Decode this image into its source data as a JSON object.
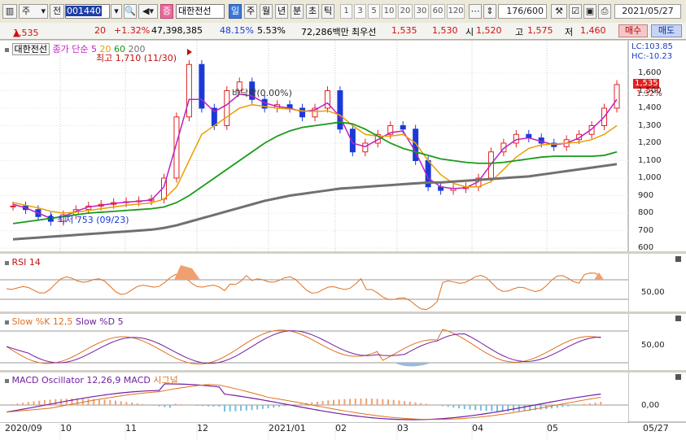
{
  "toolbar": {
    "market": "주",
    "type": "전",
    "code": "001440",
    "stock_name": "대한전선",
    "periods": [
      "일",
      "주",
      "월",
      "년",
      "분",
      "초",
      "틱"
    ],
    "active_period": "일",
    "intervals": [
      "1",
      "3",
      "5",
      "10",
      "20",
      "30",
      "60",
      "120"
    ],
    "count": "176",
    "count_total": "/600",
    "date": "2021/05/27"
  },
  "quote": {
    "price": "1,535",
    "change": "20",
    "change_pct": "+1.32%",
    "volume": "47,398,385",
    "vol_ratio": "48.15%",
    "turnover": "5.53%",
    "amount": "72,286백만",
    "label_bid": "최우선",
    "bid1": "1,535",
    "bid2": "1,530",
    "label_open": "시",
    "open": "1,520",
    "label_high": "고",
    "high": "1,575",
    "label_low": "저",
    "low": "1,460",
    "buy": "매수",
    "sell": "매도"
  },
  "price_panel": {
    "stock_label": "대한전선",
    "ma_label": "종가 단순",
    "ma_periods": [
      "5",
      "20",
      "60",
      "200"
    ],
    "ma_colors": [
      "#c020c0",
      "#e8a000",
      "#1a9a1a",
      "#707070"
    ],
    "lc": "LC:103.85",
    "hc": "HC:-10.23",
    "high_note": "최고 1,710 (11/30)",
    "low_note": "최저 753 (09/23)",
    "mid_note": "바닥락(0.00%)",
    "current_price": "1,535",
    "current_pct": "1.32%",
    "y_ticks": [
      "1,600",
      "1,500",
      "1,400",
      "1,300",
      "1,200",
      "1,100",
      "1,000",
      "900",
      "800",
      "700",
      "600"
    ]
  },
  "rsi_panel": {
    "title": "RSI 14",
    "level": "50,00"
  },
  "stoch_panel": {
    "title_k": "Slow %K 12,5",
    "title_d": "Slow %D 5",
    "level": "50,00"
  },
  "macd_panel": {
    "title_osc": "MACD Oscillator 12,26,9",
    "title_macd": "MACD",
    "title_sig": "시그널",
    "level": "0,00"
  },
  "x_axis": {
    "labels": [
      "2020/09",
      "10",
      "11",
      "12",
      "2021/01",
      "02",
      "03",
      "04",
      "05"
    ],
    "end_date": "05/27"
  },
  "colors": {
    "up": "#e02020",
    "down": "#1a3ad8",
    "rsi": "#e07020",
    "k": "#e07020",
    "d": "#7020a0",
    "macd": "#7020a0",
    "signal": "#e07020"
  },
  "chart_data": {
    "type": "line",
    "series": [
      {
        "name": "종가",
        "values": [
          840,
          820,
          780,
          753,
          790,
          820,
          840,
          850,
          860,
          865,
          870,
          880,
          1000,
          1350,
          1650,
          1400,
          1300,
          1500,
          1550,
          1450,
          1400,
          1420,
          1400,
          1350,
          1400,
          1500,
          1280,
          1150,
          1200,
          1250,
          1300,
          1280,
          1100,
          950,
          930,
          940,
          950,
          1000,
          1150,
          1200,
          1250,
          1230,
          1200,
          1180,
          1220,
          1250,
          1300,
          1400,
          1535
        ]
      },
      {
        "name": "5",
        "values": [
          850,
          830,
          800,
          770,
          780,
          810,
          835,
          845,
          855,
          862,
          868,
          875,
          950,
          1200,
          1450,
          1450,
          1380,
          1420,
          1480,
          1470,
          1430,
          1410,
          1400,
          1380,
          1390,
          1430,
          1350,
          1200,
          1180,
          1220,
          1260,
          1270,
          1150,
          1000,
          950,
          940,
          945,
          980,
          1080,
          1170,
          1220,
          1230,
          1210,
          1190,
          1200,
          1230,
          1280,
          1350,
          1450
        ]
      },
      {
        "name": "20",
        "values": [
          860,
          845,
          830,
          810,
          800,
          805,
          815,
          825,
          835,
          845,
          852,
          858,
          880,
          950,
          1100,
          1250,
          1300,
          1350,
          1400,
          1420,
          1410,
          1400,
          1395,
          1385,
          1380,
          1385,
          1360,
          1300,
          1250,
          1240,
          1240,
          1250,
          1200,
          1100,
          1020,
          970,
          950,
          950,
          980,
          1050,
          1120,
          1170,
          1190,
          1195,
          1200,
          1205,
          1220,
          1250,
          1300
        ]
      },
      {
        "name": "60",
        "values": [
          740,
          750,
          760,
          770,
          780,
          790,
          800,
          805,
          810,
          815,
          820,
          825,
          835,
          860,
          900,
          950,
          1000,
          1050,
          1100,
          1150,
          1200,
          1240,
          1270,
          1290,
          1300,
          1310,
          1320,
          1310,
          1280,
          1240,
          1200,
          1170,
          1150,
          1130,
          1110,
          1100,
          1090,
          1085,
          1085,
          1090,
          1100,
          1110,
          1120,
          1125,
          1125,
          1125,
          1125,
          1130,
          1150
        ]
      },
      {
        "name": "200",
        "values": [
          650,
          655,
          660,
          665,
          670,
          675,
          680,
          685,
          690,
          695,
          700,
          705,
          715,
          730,
          750,
          770,
          790,
          810,
          830,
          850,
          870,
          885,
          900,
          910,
          920,
          930,
          940,
          945,
          950,
          955,
          960,
          965,
          970,
          975,
          975,
          980,
          985,
          990,
          995,
          1000,
          1005,
          1010,
          1020,
          1030,
          1040,
          1050,
          1060,
          1070,
          1080
        ]
      }
    ],
    "ylim": [
      600,
      1650
    ],
    "y_ticks": [
      600,
      700,
      800,
      900,
      1000,
      1100,
      1200,
      1300,
      1400,
      1500,
      1600
    ]
  }
}
